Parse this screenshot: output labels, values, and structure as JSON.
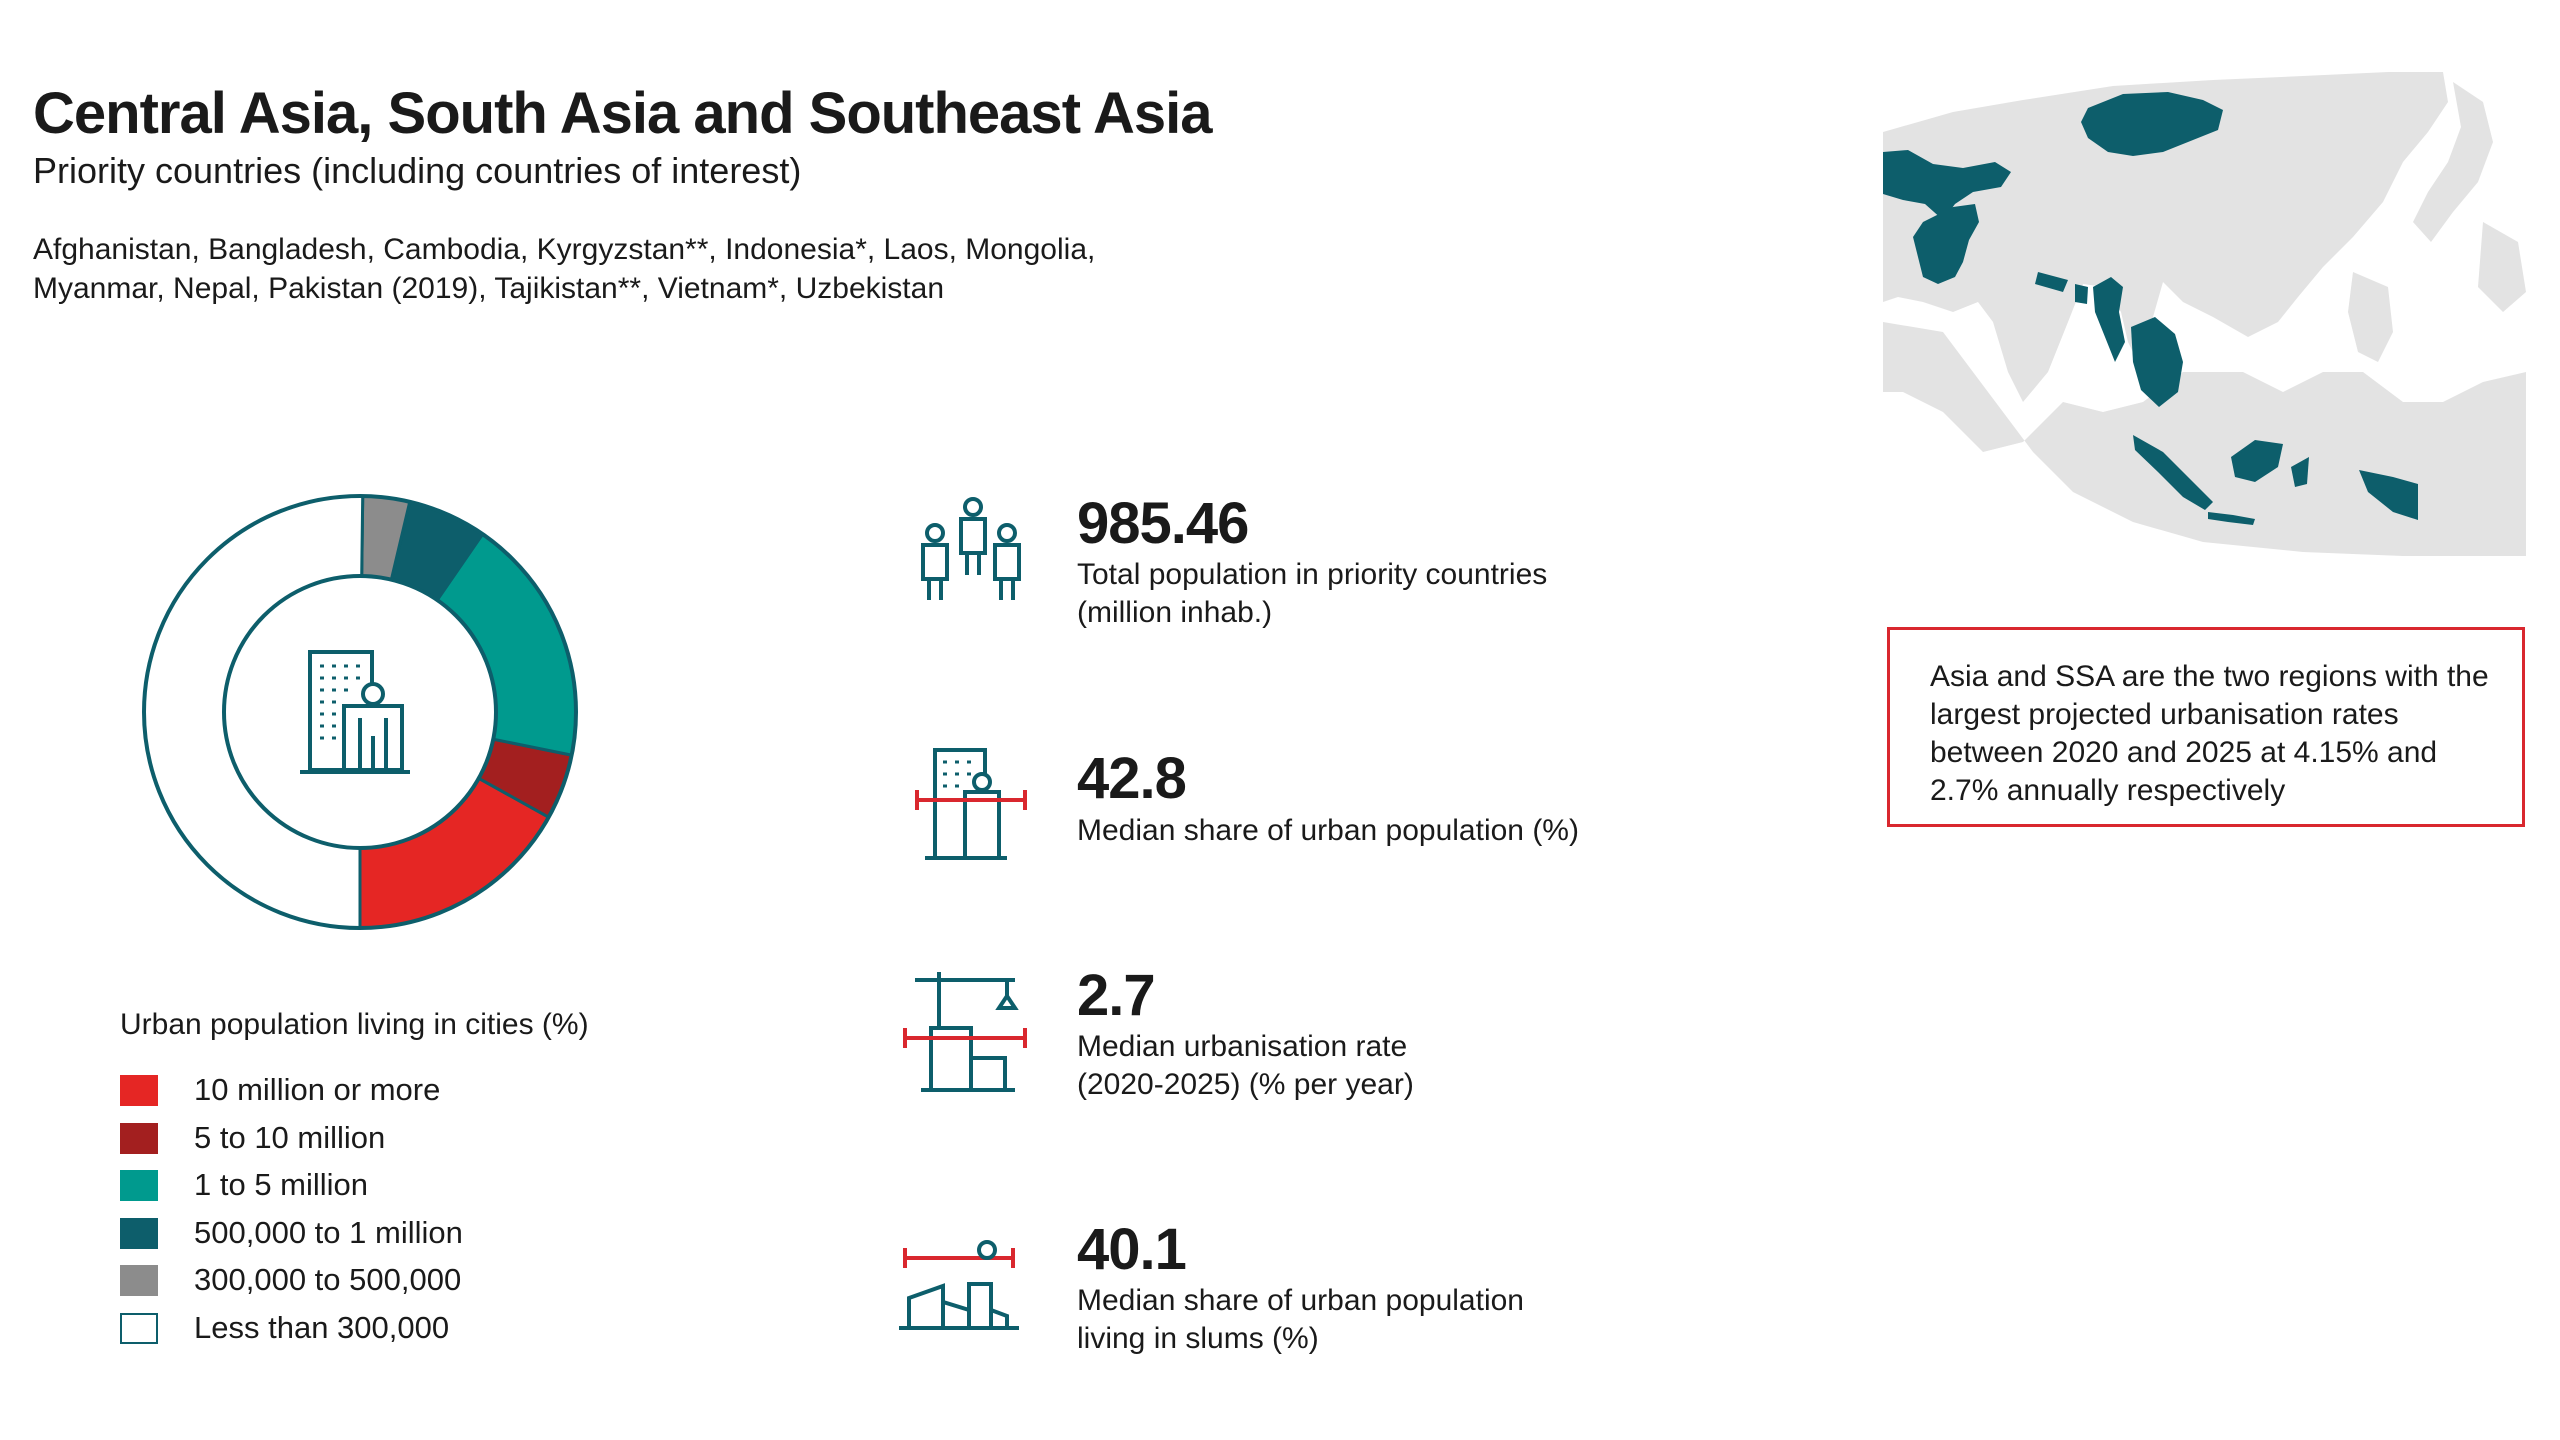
{
  "header": {
    "title": "Central Asia, South Asia and Southeast Asia",
    "subtitle": "Priority countries (including countries of interest)",
    "countries_line1": "Afghanistan, Bangladesh, Cambodia, Kyrgyzstan**, Indonesia*, Laos, Mongolia,",
    "countries_line2": "Myanmar, Nepal, Pakistan (2019), Tajikistan**, Vietnam*, Uzbekistan"
  },
  "colors": {
    "teal_dark": "#0d5e6b",
    "teal": "#009a8e",
    "red": "#e52624",
    "dark_red": "#a31f1f",
    "grey": "#8c8c8c",
    "map_land": "#e3e3e3",
    "callout_border": "#d9272e"
  },
  "chart_data": {
    "type": "pie",
    "variant": "donut",
    "title": "Urban population living in cities (%)",
    "categories": [
      "10 million or more",
      "5 to 10 million",
      "1 to 5 million",
      "500,000 to 1 million",
      "300,000 to 500,000",
      "Less than 300,000"
    ],
    "values": [
      16.9,
      4.9,
      18.6,
      5.9,
      3.5,
      50.2
    ],
    "colors": [
      "#e52624",
      "#a31f1f",
      "#009a8e",
      "#0d5e6b",
      "#8c8c8c",
      "#ffffff"
    ],
    "center_icon": "building-person-icon"
  },
  "legend": {
    "title": "Urban population living in cities (%)",
    "items": [
      {
        "label": "10 million or more",
        "color": "#e52624"
      },
      {
        "label": "5 to 10 million",
        "color": "#a31f1f"
      },
      {
        "label": "1 to 5 million",
        "color": "#009a8e"
      },
      {
        "label": "500,000 to 1 million",
        "color": "#0d5e6b"
      },
      {
        "label": "300,000 to 500,000",
        "color": "#8c8c8c"
      },
      {
        "label": "Less than 300,000",
        "color": "#ffffff"
      }
    ]
  },
  "stats": [
    {
      "value": "985.46",
      "label_line1": "Total population in priority countries",
      "label_line2": "(million inhab.)",
      "icon": "people-icon"
    },
    {
      "value": "42.8",
      "label_line1": "Median share of urban population (%)",
      "label_line2": "",
      "icon": "urban-building-icon"
    },
    {
      "value": "2.7",
      "label_line1": "Median urbanisation rate",
      "label_line2": "(2020-2025) (% per year)",
      "icon": "construction-crane-icon"
    },
    {
      "value": "40.1",
      "label_line1": "Median share of urban population",
      "label_line2": "living in slums (%)",
      "icon": "slum-housing-icon"
    }
  ],
  "callout": {
    "text": "Asia and SSA are the two regions with the largest projected urbanisation rates between 2020 and 2025 at 4.15% and 2.7% annually respectively"
  }
}
